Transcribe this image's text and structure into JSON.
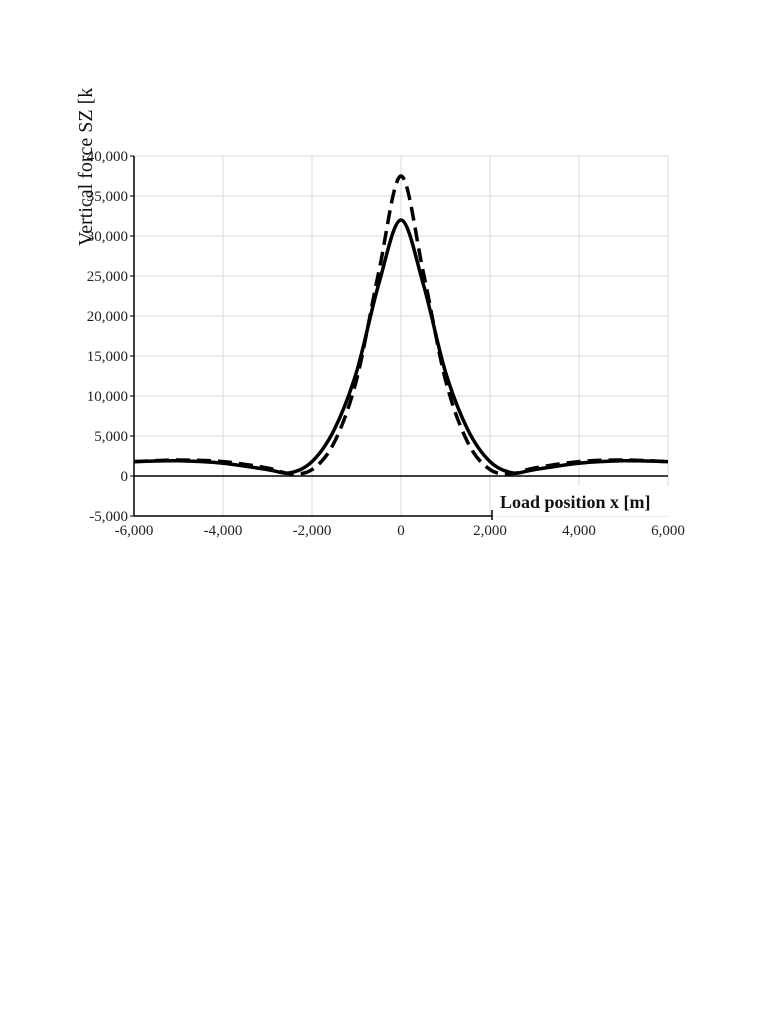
{
  "chart_data": {
    "type": "line",
    "xlabel": "Load position x [m]",
    "ylabel": "Vertical force SZ [k",
    "xlim": [
      -6000,
      6000
    ],
    "ylim": [
      -5000,
      40000
    ],
    "x_ticks": [
      -6000,
      -4000,
      -2000,
      0,
      2000,
      4000,
      6000
    ],
    "y_ticks": [
      -5000,
      0,
      5000,
      10000,
      15000,
      20000,
      25000,
      30000,
      35000,
      40000
    ],
    "x_tick_labels": [
      "-6,000",
      "-4,000",
      "-2,000",
      "0",
      "2,000",
      "4,000",
      "6,000"
    ],
    "y_tick_labels": [
      "-5,000",
      "0",
      "5,000",
      "10,000",
      "15,000",
      "20,000",
      "25,000",
      "30,000",
      "35,000",
      "40,000"
    ],
    "grid": true,
    "series": [
      {
        "style": "solid",
        "x": [
          -6000,
          -5000,
          -4000,
          -3000,
          -2500,
          -2000,
          -1500,
          -1000,
          -500,
          0,
          500,
          1000,
          1500,
          2000,
          2500,
          3000,
          4000,
          5000,
          6000
        ],
        "y": [
          1800,
          1900,
          1600,
          800,
          400,
          1800,
          5800,
          13000,
          24000,
          32000,
          24000,
          13000,
          5800,
          1800,
          400,
          800,
          1600,
          1900,
          1800
        ]
      },
      {
        "style": "dashed",
        "x": [
          -6000,
          -5000,
          -4000,
          -3000,
          -2500,
          -2000,
          -1500,
          -1000,
          -500,
          0,
          500,
          1000,
          1500,
          2000,
          2500,
          3000,
          4000,
          5000,
          6000
        ],
        "y": [
          1800,
          2000,
          1800,
          1000,
          300,
          800,
          4200,
          12000,
          25500,
          37500,
          25500,
          12000,
          4200,
          800,
          300,
          1000,
          1800,
          2000,
          1800
        ]
      }
    ]
  }
}
